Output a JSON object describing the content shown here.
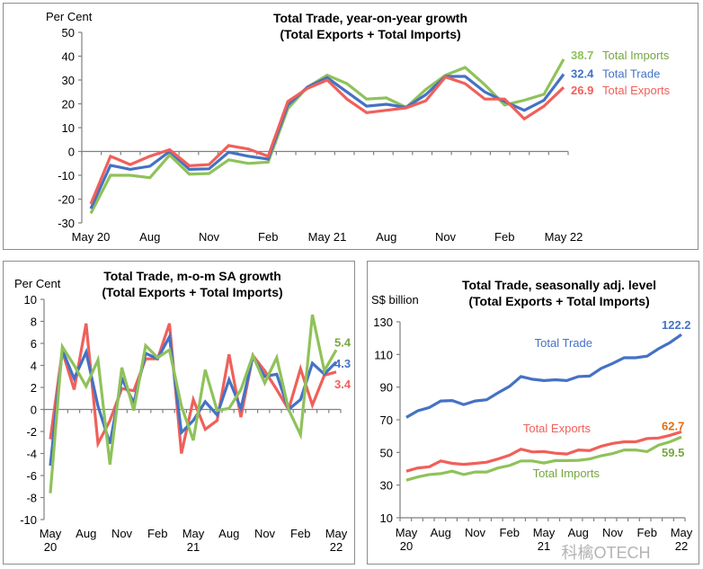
{
  "colors": {
    "total_trade": "#4472c4",
    "total_exports": "#f0605a",
    "total_imports": "#8fc25a",
    "imports_label": "#77a640",
    "exports_value_p3": "#e46c0a"
  },
  "watermark": "科檎OTECH",
  "chart_data": [
    {
      "type": "line",
      "title": "Total Trade, year-on-year growth",
      "subtitle": "(Total Exports + Total Imports)",
      "ylabel": "Per Cent",
      "xlabel": "",
      "ylim": [
        -30,
        50
      ],
      "yticks": [
        50,
        40,
        30,
        20,
        10,
        0,
        -10,
        -20,
        -30
      ],
      "x": [
        "May 20",
        "Jun 20",
        "Jul 20",
        "Aug 20",
        "Sep 20",
        "Oct 20",
        "Nov 20",
        "Dec 20",
        "Jan 21",
        "Feb 21",
        "Mar 21",
        "Apr 21",
        "May 21",
        "Jun 21",
        "Jul 21",
        "Aug 21",
        "Sep 21",
        "Oct 21",
        "Nov 21",
        "Dec 21",
        "Jan 22",
        "Feb 22",
        "Mar 22",
        "Apr 22",
        "May 22"
      ],
      "xtick_labels": [
        {
          "index": 0,
          "label": "May 20"
        },
        {
          "index": 3,
          "label": "Aug"
        },
        {
          "index": 6,
          "label": "Nov"
        },
        {
          "index": 9,
          "label": "Feb"
        },
        {
          "index": 12,
          "label": "May 21"
        },
        {
          "index": 15,
          "label": "Aug"
        },
        {
          "index": 18,
          "label": "Nov"
        },
        {
          "index": 21,
          "label": "Feb"
        },
        {
          "index": 24,
          "label": "May 22"
        }
      ],
      "grid": false,
      "legend": "end-of-line labels (right)",
      "series": [
        {
          "name": "Total Imports",
          "key": "total_imports",
          "last_label": "38.7",
          "values": [
            -26,
            -10,
            -10,
            -11,
            -1.5,
            -9.5,
            -9.3,
            -3.5,
            -5,
            -4.5,
            18,
            27,
            32,
            28.5,
            22,
            22.5,
            18.5,
            26,
            32,
            35.3,
            28,
            19.5,
            21.5,
            24,
            38.7
          ]
        },
        {
          "name": "Total Trade",
          "key": "total_trade",
          "last_label": "32.4",
          "values": [
            -24,
            -5.8,
            -7.5,
            -6.2,
            0,
            -7.5,
            -7.3,
            -0.3,
            -2,
            -3.2,
            19.5,
            27,
            31,
            25,
            19,
            19.8,
            18.5,
            23.8,
            31.5,
            31.5,
            25,
            21,
            17.3,
            21.5,
            32.4
          ]
        },
        {
          "name": "Total Exports",
          "key": "total_exports",
          "last_label": "26.9",
          "values": [
            -22,
            -2,
            -5.5,
            -2,
            0.7,
            -6,
            -5.5,
            2.5,
            1,
            -2,
            21,
            26.5,
            30,
            22,
            16.3,
            17.3,
            18.3,
            21.3,
            31.3,
            28.5,
            22,
            22,
            13.7,
            19,
            26.9
          ]
        }
      ]
    },
    {
      "type": "line",
      "title": "Total Trade, m-o-m SA growth",
      "subtitle": "(Total Exports + Total Imports)",
      "ylabel": "Per Cent",
      "xlabel": "",
      "ylim": [
        -10,
        10
      ],
      "yticks": [
        10,
        8,
        6,
        4,
        2,
        0,
        -2,
        -4,
        -6,
        -8,
        -10
      ],
      "x": [
        "May 20",
        "Jun 20",
        "Jul 20",
        "Aug 20",
        "Sep 20",
        "Oct 20",
        "Nov 20",
        "Dec 20",
        "Jan 21",
        "Feb 21",
        "Mar 21",
        "Apr 21",
        "May 21",
        "Jun 21",
        "Jul 21",
        "Aug 21",
        "Sep 21",
        "Oct 21",
        "Nov 21",
        "Dec 21",
        "Jan 22",
        "Feb 22",
        "Mar 22",
        "Apr 22",
        "May 22"
      ],
      "xtick_labels": [
        {
          "index": 0,
          "label": "May",
          "label2": "20"
        },
        {
          "index": 3,
          "label": "Aug",
          "label2": ""
        },
        {
          "index": 6,
          "label": "Nov",
          "label2": ""
        },
        {
          "index": 9,
          "label": "Feb",
          "label2": ""
        },
        {
          "index": 12,
          "label": "May",
          "label2": "21"
        },
        {
          "index": 15,
          "label": "Aug",
          "label2": ""
        },
        {
          "index": 18,
          "label": "Nov",
          "label2": ""
        },
        {
          "index": 21,
          "label": "Feb",
          "label2": ""
        },
        {
          "index": 24,
          "label": "May",
          "label2": "22"
        }
      ],
      "grid": false,
      "legend": "end-of-line values (right)",
      "series": [
        {
          "name": "Total Exports",
          "key": "total_exports",
          "last_label": "3.4",
          "values": [
            -2.7,
            5.3,
            1.8,
            7.8,
            -3.1,
            -1.0,
            1.9,
            1.7,
            4.6,
            4.6,
            7.8,
            -4.0,
            0.9,
            -1.8,
            -1.0,
            5.0,
            -0.7,
            4.9,
            3.5,
            1.8,
            0.0,
            3.7,
            0.4,
            3.1,
            3.4
          ]
        },
        {
          "name": "Total Trade",
          "key": "total_trade",
          "last_label": "4.3",
          "values": [
            -5.1,
            5.4,
            2.8,
            5.2,
            0.3,
            -3.1,
            2.8,
            0.6,
            5.1,
            4.6,
            6.6,
            -2.1,
            -1.0,
            0.7,
            -0.5,
            2.7,
            0.1,
            4.8,
            3.0,
            3.2,
            0.0,
            0.9,
            4.2,
            3.2,
            4.3
          ]
        },
        {
          "name": "Total Imports",
          "key": "total_imports",
          "last_label": "5.4",
          "values": [
            -7.6,
            5.7,
            4.0,
            2.1,
            4.5,
            -5.0,
            3.8,
            -0.1,
            5.8,
            4.7,
            5.4,
            0.3,
            -2.8,
            3.6,
            -0.1,
            0.1,
            1.8,
            4.9,
            2.4,
            4.7,
            0.0,
            -2.3,
            8.6,
            3.5,
            5.4
          ]
        }
      ]
    },
    {
      "type": "line",
      "title": "Total Trade, seasonally adj. level",
      "subtitle": "(Total Exports + Total Imports)",
      "ylabel": "S$ billion",
      "xlabel": "",
      "ylim": [
        10,
        130
      ],
      "yticks": [
        130,
        110,
        90,
        70,
        50,
        30,
        10
      ],
      "x": [
        "May 20",
        "Jun 20",
        "Jul 20",
        "Aug 20",
        "Sep 20",
        "Oct 20",
        "Nov 20",
        "Dec 20",
        "Jan 21",
        "Feb 21",
        "Mar 21",
        "Apr 21",
        "May 21",
        "Jun 21",
        "Jul 21",
        "Aug 21",
        "Sep 21",
        "Oct 21",
        "Nov 21",
        "Dec 21",
        "Jan 22",
        "Feb 22",
        "Mar 22",
        "Apr 22",
        "May 22"
      ],
      "xtick_labels": [
        {
          "index": 0,
          "label": "May",
          "label2": "20"
        },
        {
          "index": 3,
          "label": "Aug",
          "label2": ""
        },
        {
          "index": 6,
          "label": "Nov",
          "label2": ""
        },
        {
          "index": 9,
          "label": "Feb",
          "label2": ""
        },
        {
          "index": 12,
          "label": "May",
          "label2": "21"
        },
        {
          "index": 15,
          "label": "Aug",
          "label2": ""
        },
        {
          "index": 18,
          "label": "Nov",
          "label2": ""
        },
        {
          "index": 21,
          "label": "Feb",
          "label2": ""
        },
        {
          "index": 24,
          "label": "May",
          "label2": "22"
        }
      ],
      "grid": false,
      "legend": "inline labels near lines",
      "series": [
        {
          "name": "Total Trade",
          "key": "total_trade",
          "last_label": "122.2",
          "values": [
            71.5,
            75.5,
            77.5,
            81.5,
            81.8,
            79.3,
            81.5,
            82.3,
            86.5,
            90.5,
            96.5,
            94.8,
            94,
            94.5,
            94,
            96.5,
            96.8,
            101.5,
            104.5,
            108,
            108,
            109,
            113.5,
            117.3,
            122.2
          ]
        },
        {
          "name": "Total Exports",
          "key": "total_exports",
          "last_label": "62.7",
          "values": [
            38.5,
            40.5,
            41.2,
            44.8,
            43.3,
            42.7,
            43.3,
            44,
            46,
            48.3,
            52,
            50.3,
            50.5,
            49.5,
            49,
            51.5,
            51.2,
            53.8,
            55.5,
            56.5,
            56.5,
            58.5,
            58.8,
            60.5,
            62.7
          ]
        },
        {
          "name": "Total Imports",
          "key": "total_imports",
          "last_label": "59.5",
          "values": [
            33,
            35,
            36.5,
            37,
            38.5,
            36.5,
            38,
            38,
            40.5,
            42,
            44.8,
            44.8,
            43.5,
            45,
            45,
            45.2,
            46,
            48,
            49.3,
            51.5,
            51.5,
            50.5,
            54.5,
            56.5,
            59.5
          ]
        }
      ]
    }
  ]
}
